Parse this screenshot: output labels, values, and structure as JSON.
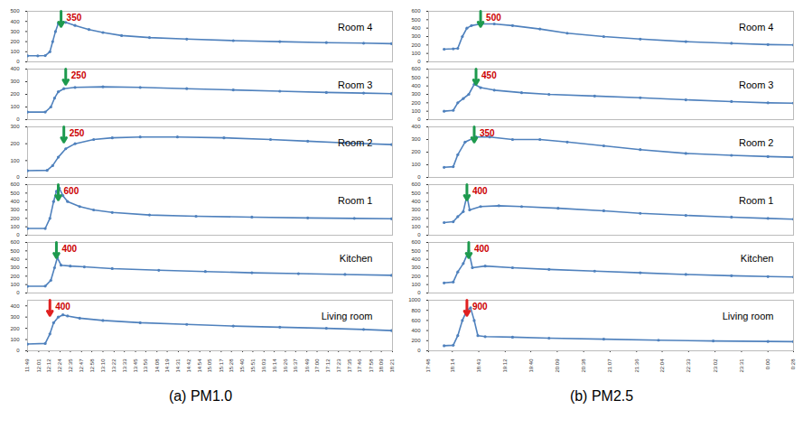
{
  "chart_data": [
    {
      "type": "line",
      "title": "(a) PM1.0",
      "color": "#4f81bd",
      "marker": "circle",
      "xlim": [
        709,
        1101
      ],
      "xticks": [
        {
          "value": 709,
          "label": "11:49"
        },
        {
          "value": 721,
          "label": "12:01"
        },
        {
          "value": 732,
          "label": "12:12"
        },
        {
          "value": 744,
          "label": "12:24"
        },
        {
          "value": 755,
          "label": "12:35"
        },
        {
          "value": 767,
          "label": "12:47"
        },
        {
          "value": 778,
          "label": "12:58"
        },
        {
          "value": 790,
          "label": "13:10"
        },
        {
          "value": 802,
          "label": "13:22"
        },
        {
          "value": 813,
          "label": "13:33"
        },
        {
          "value": 825,
          "label": "13:45"
        },
        {
          "value": 836,
          "label": "13:56"
        },
        {
          "value": 848,
          "label": "14:08"
        },
        {
          "value": 859,
          "label": "14:19"
        },
        {
          "value": 871,
          "label": "14:31"
        },
        {
          "value": 882,
          "label": "14:42"
        },
        {
          "value": 894,
          "label": "14:54"
        },
        {
          "value": 905,
          "label": "15:05"
        },
        {
          "value": 917,
          "label": "15:17"
        },
        {
          "value": 928,
          "label": "15:28"
        },
        {
          "value": 940,
          "label": "15:40"
        },
        {
          "value": 951,
          "label": "15:51"
        },
        {
          "value": 963,
          "label": "16:03"
        },
        {
          "value": 974,
          "label": "16:14"
        },
        {
          "value": 986,
          "label": "16:26"
        },
        {
          "value": 997,
          "label": "16:37"
        },
        {
          "value": 1009,
          "label": "16:49"
        },
        {
          "value": 1020,
          "label": "17:00"
        },
        {
          "value": 1032,
          "label": "17:12"
        },
        {
          "value": 1043,
          "label": "17:23"
        },
        {
          "value": 1055,
          "label": "17:35"
        },
        {
          "value": 1066,
          "label": "17:46"
        },
        {
          "value": 1078,
          "label": "17:58"
        },
        {
          "value": 1089,
          "label": "18:09"
        },
        {
          "value": 1101,
          "label": "18:21"
        }
      ],
      "panels": [
        {
          "title": "Room 4",
          "ylim": [
            0,
            500
          ],
          "yticks": [
            0,
            100,
            200,
            300,
            400,
            500
          ],
          "x": [
            709,
            720,
            728,
            733,
            736,
            739,
            742,
            745,
            750,
            760,
            775,
            790,
            810,
            840,
            880,
            930,
            980,
            1030,
            1070,
            1100
          ],
          "values": [
            60,
            60,
            62,
            100,
            200,
            300,
            380,
            400,
            390,
            360,
            320,
            290,
            260,
            240,
            225,
            210,
            200,
            190,
            185,
            180
          ],
          "annotation": {
            "text": "350",
            "x": 745,
            "color": "#1e9a4e"
          }
        },
        {
          "title": "Room 3",
          "ylim": [
            0,
            400
          ],
          "yticks": [
            0,
            100,
            200,
            300,
            400
          ],
          "x": [
            709,
            728,
            734,
            738,
            742,
            748,
            760,
            790,
            830,
            880,
            930,
            980,
            1030,
            1070,
            1100
          ],
          "values": [
            60,
            60,
            100,
            170,
            220,
            245,
            255,
            260,
            255,
            245,
            235,
            225,
            215,
            210,
            205
          ],
          "annotation": {
            "text": "250",
            "x": 750,
            "color": "#1e9a4e"
          }
        },
        {
          "title": "Room 2",
          "ylim": [
            0,
            300
          ],
          "yticks": [
            0,
            100,
            200,
            300
          ],
          "x": [
            709,
            730,
            736,
            742,
            750,
            760,
            780,
            800,
            830,
            870,
            920,
            970,
            1010,
            1050,
            1100
          ],
          "values": [
            40,
            42,
            70,
            120,
            170,
            200,
            225,
            235,
            240,
            240,
            235,
            225,
            215,
            205,
            195
          ],
          "annotation": {
            "text": "250",
            "x": 748,
            "color": "#1e9a4e"
          }
        },
        {
          "title": "Room 1",
          "ylim": [
            0,
            600
          ],
          "yticks": [
            0,
            100,
            200,
            300,
            400,
            500,
            600
          ],
          "x": [
            709,
            728,
            733,
            737,
            740,
            743,
            747,
            752,
            765,
            780,
            800,
            840,
            890,
            950,
            1010,
            1060,
            1100
          ],
          "values": [
            80,
            80,
            200,
            400,
            520,
            560,
            470,
            400,
            340,
            300,
            270,
            240,
            225,
            215,
            205,
            200,
            195
          ],
          "annotation": {
            "text": "600",
            "x": 742,
            "color": "#1e9a4e"
          }
        },
        {
          "title": "Kitchen",
          "ylim": [
            0,
            600
          ],
          "yticks": [
            0,
            100,
            200,
            300,
            400,
            500,
            600
          ],
          "x": [
            709,
            728,
            734,
            738,
            741,
            745,
            755,
            770,
            800,
            850,
            900,
            950,
            1000,
            1050,
            1100
          ],
          "values": [
            80,
            82,
            150,
            300,
            420,
            330,
            320,
            310,
            290,
            270,
            255,
            240,
            230,
            220,
            210
          ],
          "annotation": {
            "text": "400",
            "x": 740,
            "color": "#1e9a4e"
          }
        },
        {
          "title": "Living room",
          "ylim": [
            0,
            450
          ],
          "yticks": [
            0,
            100,
            200,
            300,
            400
          ],
          "x": [
            709,
            728,
            733,
            737,
            742,
            747,
            752,
            765,
            790,
            830,
            880,
            930,
            980,
            1030,
            1070,
            1100
          ],
          "values": [
            60,
            65,
            150,
            250,
            300,
            320,
            310,
            290,
            270,
            250,
            235,
            220,
            210,
            200,
            190,
            180
          ],
          "annotation": {
            "text": "400",
            "x": 733,
            "color": "#e02020"
          }
        }
      ]
    },
    {
      "type": "line",
      "title": "(b) PM2.5",
      "color": "#4f81bd",
      "marker": "circle",
      "xlim": [
        1068,
        1468
      ],
      "xticks": [
        {
          "value": 1068,
          "label": "17:48"
        },
        {
          "value": 1094,
          "label": "18:14"
        },
        {
          "value": 1123,
          "label": "18:43"
        },
        {
          "value": 1152,
          "label": "19:12"
        },
        {
          "value": 1180,
          "label": "19:40"
        },
        {
          "value": 1209,
          "label": "20:09"
        },
        {
          "value": 1238,
          "label": "20:38"
        },
        {
          "value": 1267,
          "label": "21:07"
        },
        {
          "value": 1296,
          "label": "21:36"
        },
        {
          "value": 1324,
          "label": "22:04"
        },
        {
          "value": 1353,
          "label": "22:33"
        },
        {
          "value": 1382,
          "label": "23:02"
        },
        {
          "value": 1411,
          "label": "23:31"
        },
        {
          "value": 1440,
          "label": "0:00"
        },
        {
          "value": 1468,
          "label": "0:28"
        }
      ],
      "panels": [
        {
          "title": "Room 4",
          "ylim": [
            0,
            600
          ],
          "yticks": [
            0,
            100,
            200,
            300,
            400,
            500,
            600
          ],
          "x": [
            1085,
            1095,
            1100,
            1105,
            1110,
            1115,
            1125,
            1140,
            1160,
            1190,
            1220,
            1260,
            1300,
            1350,
            1400,
            1440,
            1468
          ],
          "values": [
            150,
            155,
            160,
            300,
            400,
            430,
            450,
            450,
            430,
            390,
            340,
            300,
            270,
            240,
            220,
            205,
            200
          ],
          "annotation": {
            "text": "500",
            "x": 1125,
            "color": "#1e9a4e"
          }
        },
        {
          "title": "Room 3",
          "ylim": [
            0,
            600
          ],
          "yticks": [
            0,
            100,
            200,
            300,
            400,
            500,
            600
          ],
          "x": [
            1085,
            1095,
            1100,
            1106,
            1112,
            1118,
            1125,
            1140,
            1170,
            1200,
            1250,
            1300,
            1350,
            1400,
            1440,
            1468
          ],
          "values": [
            100,
            110,
            200,
            250,
            300,
            420,
            380,
            350,
            320,
            300,
            280,
            260,
            235,
            215,
            200,
            195
          ],
          "annotation": {
            "text": "450",
            "x": 1120,
            "color": "#1e9a4e"
          }
        },
        {
          "title": "Room 2",
          "ylim": [
            0,
            400
          ],
          "yticks": [
            0,
            100,
            200,
            300,
            400
          ],
          "x": [
            1085,
            1095,
            1100,
            1108,
            1120,
            1135,
            1160,
            1190,
            1220,
            1260,
            1300,
            1350,
            1400,
            1440,
            1468
          ],
          "values": [
            80,
            85,
            180,
            280,
            320,
            320,
            300,
            300,
            280,
            250,
            220,
            190,
            175,
            165,
            160
          ],
          "annotation": {
            "text": "350",
            "x": 1118,
            "color": "#1e9a4e"
          }
        },
        {
          "title": "Room 1",
          "ylim": [
            0,
            600
          ],
          "yticks": [
            0,
            100,
            200,
            300,
            400,
            500,
            600
          ],
          "x": [
            1085,
            1095,
            1100,
            1106,
            1110,
            1113,
            1125,
            1145,
            1170,
            1210,
            1260,
            1300,
            1350,
            1400,
            1440,
            1468
          ],
          "values": [
            150,
            160,
            220,
            280,
            470,
            300,
            340,
            350,
            340,
            320,
            290,
            260,
            235,
            215,
            200,
            190
          ],
          "annotation": {
            "text": "400",
            "x": 1110,
            "color": "#1e9a4e"
          }
        },
        {
          "title": "Kitchen",
          "ylim": [
            0,
            600
          ],
          "yticks": [
            0,
            100,
            200,
            300,
            400,
            500,
            600
          ],
          "x": [
            1085,
            1095,
            1100,
            1106,
            1112,
            1116,
            1130,
            1160,
            1200,
            1250,
            1300,
            1350,
            1400,
            1440,
            1468
          ],
          "values": [
            120,
            130,
            250,
            350,
            500,
            300,
            320,
            300,
            280,
            260,
            240,
            220,
            205,
            195,
            190
          ],
          "annotation": {
            "text": "400",
            "x": 1112,
            "color": "#1e9a4e"
          }
        },
        {
          "title": "Living room",
          "ylim": [
            0,
            1000
          ],
          "yticks": [
            0,
            200,
            400,
            600,
            800,
            1000
          ],
          "x": [
            1085,
            1095,
            1100,
            1105,
            1110,
            1114,
            1118,
            1122,
            1130,
            1160,
            1200,
            1260,
            1320,
            1380,
            1440,
            1468
          ],
          "values": [
            100,
            110,
            300,
            600,
            800,
            850,
            600,
            300,
            280,
            270,
            250,
            230,
            210,
            195,
            185,
            180
          ],
          "annotation": {
            "text": "900",
            "x": 1110,
            "color": "#e02020"
          }
        }
      ]
    }
  ]
}
